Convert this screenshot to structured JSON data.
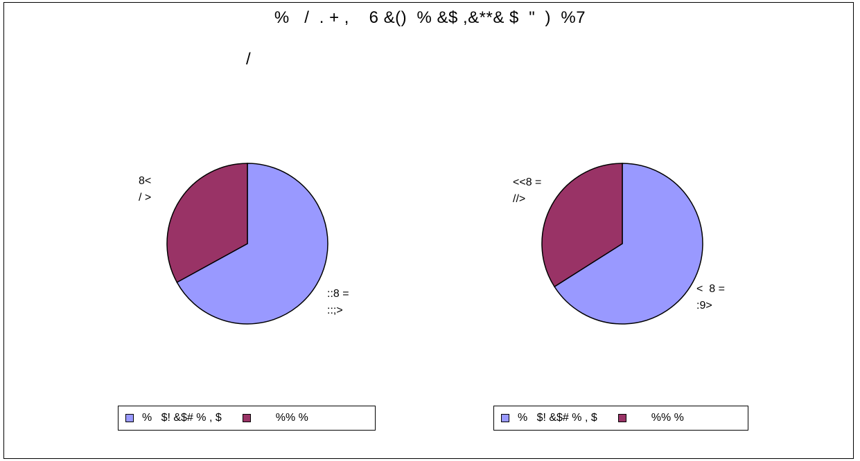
{
  "title": "%   /  . + ,    6 &()  % &$ ,&**& $  \"  )  %7",
  "subtitle": "/",
  "colors": {
    "series_a": "#9999ff",
    "series_b": "#993366",
    "outline": "#000000"
  },
  "chart_data": [
    {
      "type": "pie",
      "title": "",
      "slices": [
        {
          "name": "%   $! &$# % , $",
          "value": 67,
          "color": "#9999ff",
          "label_line1": "::8 =",
          "label_line2": "::;>"
        },
        {
          "name": "%% %",
          "value": 33,
          "color": "#993366",
          "label_line1": "8<",
          "label_line2": "/ >"
        }
      ],
      "legend": [
        "%   $! &$# % , $",
        "%% %"
      ],
      "legend_placement": "bottom"
    },
    {
      "type": "pie",
      "title": "",
      "slices": [
        {
          "name": "%   $! &$# % , $",
          "value": 66,
          "color": "#9999ff",
          "label_line1": "<  8 =",
          "label_line2": ":9>"
        },
        {
          "name": "%% %",
          "value": 34,
          "color": "#993366",
          "label_line1": "<<8 =",
          "label_line2": "//>"
        }
      ],
      "legend": [
        "%   $! &$# % , $",
        "%% %"
      ],
      "legend_placement": "bottom"
    }
  ]
}
